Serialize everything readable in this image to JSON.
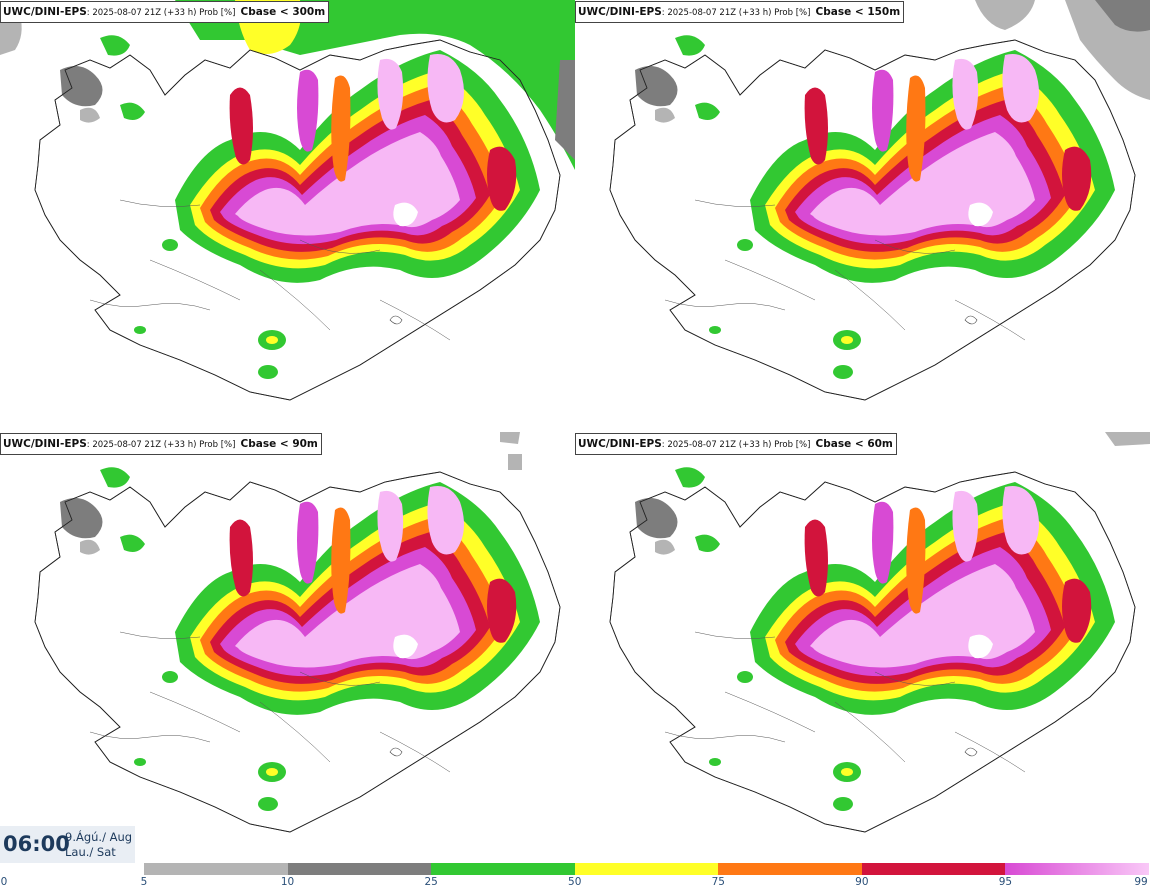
{
  "panels": [
    {
      "model": "UWC/DINI-EPS",
      "info": ": 2025-08-07 21Z (+33 h) Prob [%]",
      "param": "Cbase < 300m"
    },
    {
      "model": "UWC/DINI-EPS",
      "info": ": 2025-08-07 21Z (+33 h) Prob [%]",
      "param": "Cbase < 150m"
    },
    {
      "model": "UWC/DINI-EPS",
      "info": ": 2025-08-07 21Z (+33 h) Prob [%]",
      "param": "Cbase < 90m"
    },
    {
      "model": "UWC/DINI-EPS",
      "info": ": 2025-08-07 21Z (+33 h) Prob [%]",
      "param": "Cbase < 60m"
    }
  ],
  "valid_time": {
    "time": "06:00",
    "date_line1": "9.Ágú./ Aug",
    "date_line2": "Lau./ Sat"
  },
  "legend": {
    "ticks": [
      "0",
      "5",
      "10",
      "25",
      "50",
      "75",
      "90",
      "95",
      "99"
    ],
    "colors": [
      "#b4b4b4",
      "#7d7d7d",
      "#32c832",
      "#ffff28",
      "#ff7814",
      "#d2143c",
      "#d84ad4"
    ]
  }
}
